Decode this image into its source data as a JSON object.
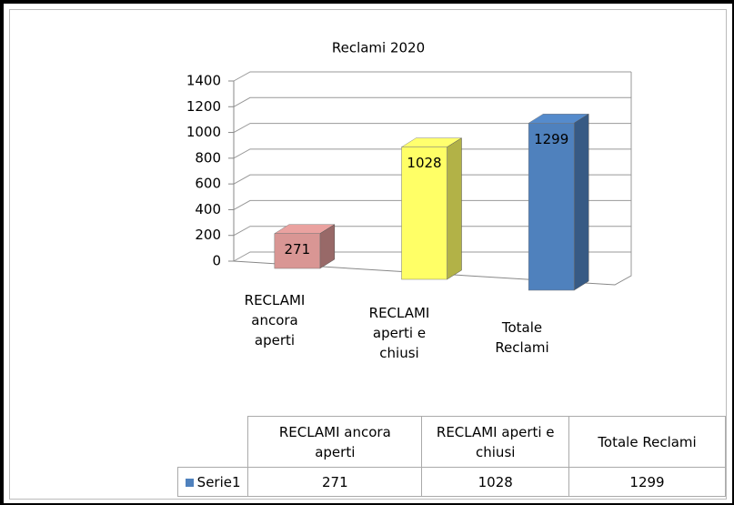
{
  "chart_data": {
    "type": "bar3d",
    "title": "Reclami 2020",
    "categories": [
      "RECLAMI ancora aperti",
      "RECLAMI aperti e chiusi",
      "Totale Reclami"
    ],
    "series": [
      {
        "name": "Serie1",
        "color": "#4f81bd",
        "values": [
          271,
          1028,
          1299
        ]
      }
    ],
    "colors": [
      "#d99694",
      "#ffff66",
      "#4f81bd"
    ],
    "ylim": [
      0,
      1400
    ],
    "yticks": [
      0,
      200,
      400,
      600,
      800,
      1000,
      1200,
      1400
    ],
    "grid": true,
    "data_table": true
  }
}
